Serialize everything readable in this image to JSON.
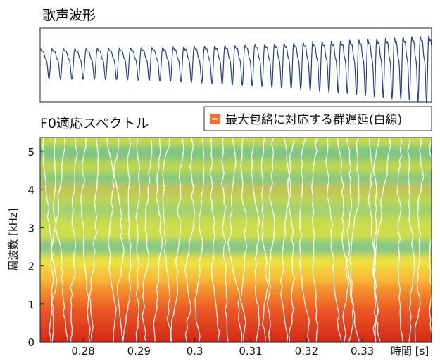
{
  "chart_data": [
    {
      "type": "waveform",
      "title": "歌声波形",
      "color": "#1f3f8f"
    },
    {
      "type": "spectrogram",
      "title": "F0適応スペクトル",
      "legend": "最大包絡に対応する群遅延(白線)",
      "legend_color": "#f07030",
      "xlabel": "時間 [s]",
      "ylabel": "周波数 [kHz]",
      "xlim": [
        0.2723,
        0.3424
      ],
      "xticks": [
        0.28,
        0.29,
        0.3,
        0.31,
        0.32,
        0.33
      ],
      "ylim": [
        0,
        5.37
      ],
      "yticks": [
        0,
        1,
        2,
        3,
        4,
        5
      ]
    }
  ]
}
